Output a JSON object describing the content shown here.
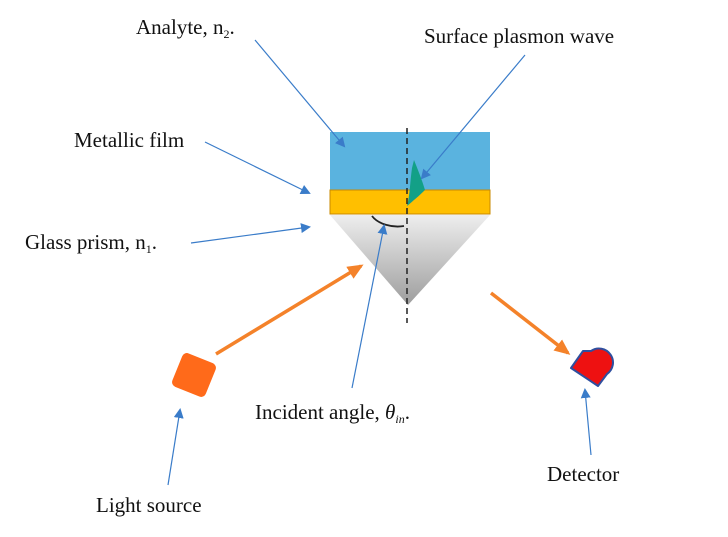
{
  "labels": {
    "analyte": {
      "text": "Analyte, n",
      "sub": "2",
      "suffix": "."
    },
    "surface_plasmon_wave": "Surface plasmon wave",
    "metallic_film": "Metallic film",
    "glass_prism": {
      "text": "Glass prism, n",
      "sub": "1",
      "suffix": "."
    },
    "incident_angle": {
      "text": "Incident angle, ",
      "symbol": "θ",
      "sub": "in",
      "suffix": "."
    },
    "light_source": "Light source",
    "detector": "Detector"
  },
  "colors": {
    "analyte_layer": "#5ab3df",
    "metal_film": "#ffbf00",
    "metal_film_border": "#c98a00",
    "prism_light": "#eeeeee",
    "prism_dark": "#9d9d9d",
    "pointer_arrow": "#3a7cc9",
    "light_beam": "#f4822a",
    "light_source": "#ff6a1a",
    "detector": "#ee1111",
    "detector_border": "#2f4f9f",
    "plasmon_wave": "#13a087",
    "normal_line": "#222222"
  }
}
